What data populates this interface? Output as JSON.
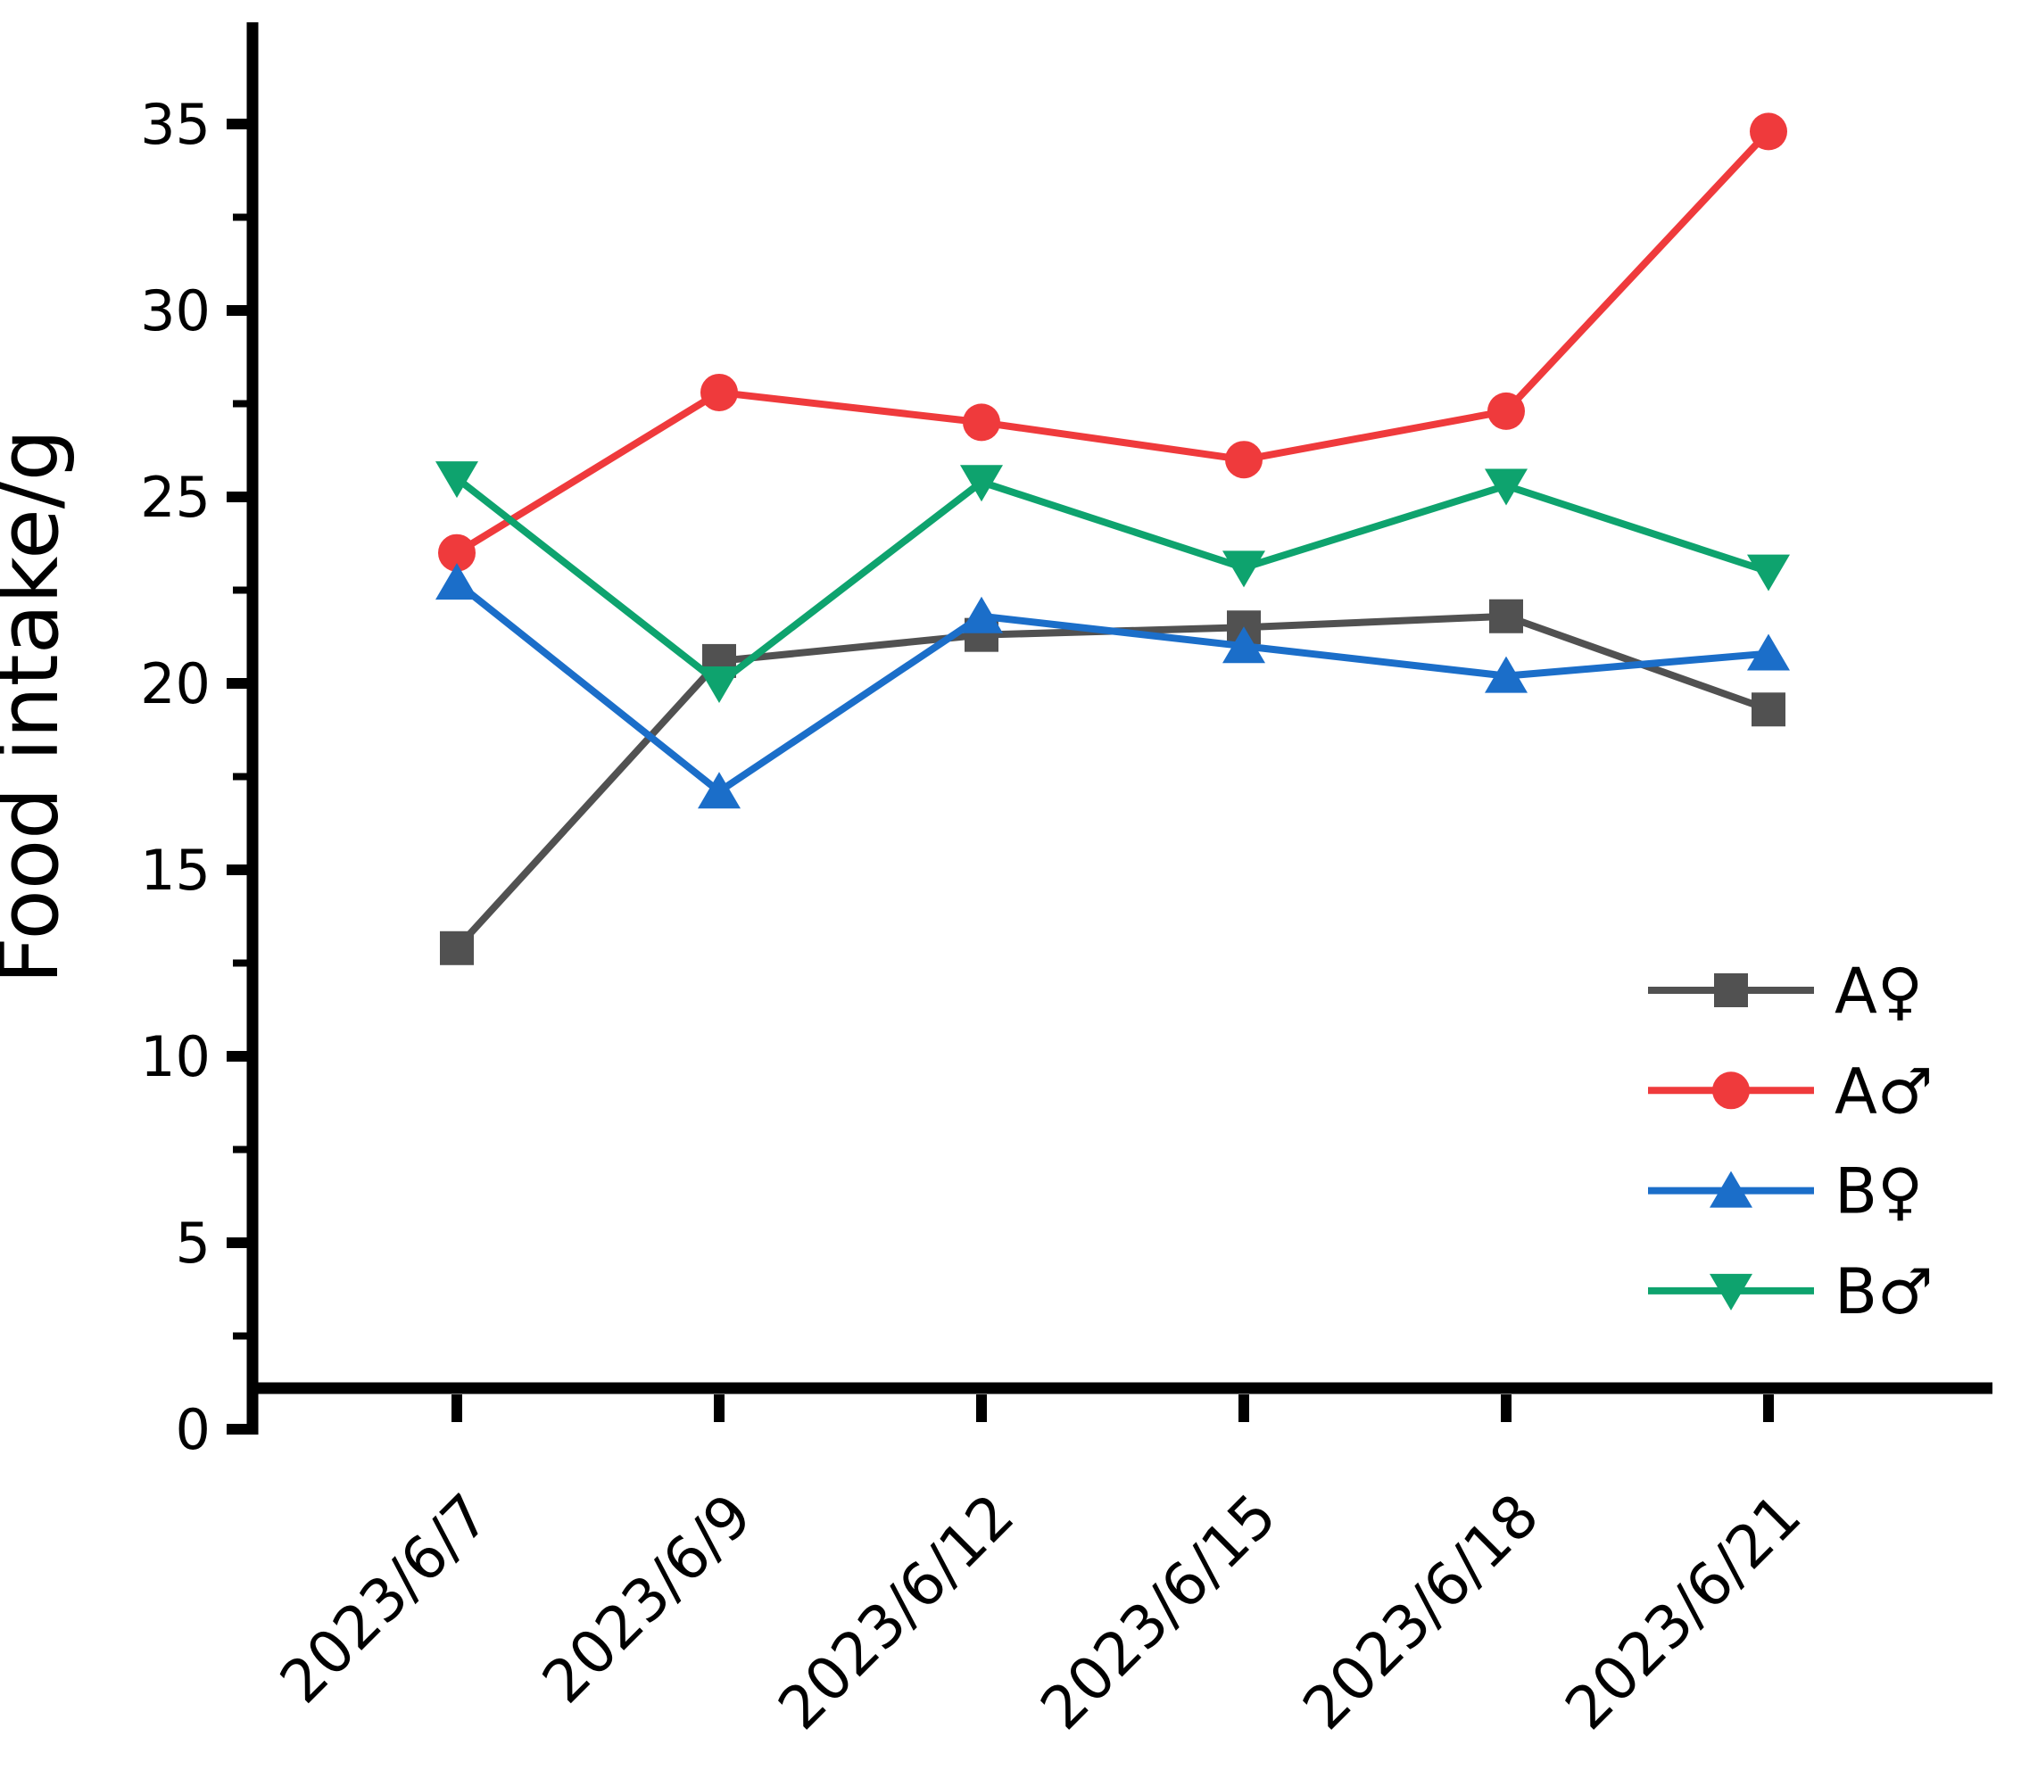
{
  "chart_data": {
    "type": "line",
    "title": "",
    "xlabel": "",
    "ylabel": "Food intake/g",
    "categories": [
      "2023/6/7",
      "2023/6/9",
      "2023/6/12",
      "2023/6/15",
      "2023/6/18",
      "2023/6/21"
    ],
    "y_ticks": [
      0,
      5,
      10,
      15,
      20,
      25,
      30,
      35
    ],
    "y_minor_step": 2.5,
    "ylim": [
      0,
      38
    ],
    "grid": false,
    "legend_position": "inside-lower-right",
    "axis_color": "#000000",
    "background_color": "#ffffff",
    "series": [
      {
        "name": "A♀",
        "marker": "square",
        "color": "#515151",
        "values": [
          12.9,
          20.6,
          21.3,
          21.5,
          21.8,
          19.3
        ]
      },
      {
        "name": "A♂",
        "marker": "circle",
        "color": "#ef3a3c",
        "values": [
          23.5,
          27.8,
          27.0,
          26.0,
          27.3,
          34.8
        ]
      },
      {
        "name": "B♀",
        "marker": "triangle-up",
        "color": "#1b6ec9",
        "values": [
          22.7,
          17.1,
          21.8,
          21.0,
          20.2,
          20.8
        ]
      },
      {
        "name": "B♂",
        "marker": "triangle-down",
        "color": "#0ea36e",
        "values": [
          25.5,
          20.0,
          25.4,
          23.1,
          25.3,
          23.0
        ]
      }
    ]
  }
}
